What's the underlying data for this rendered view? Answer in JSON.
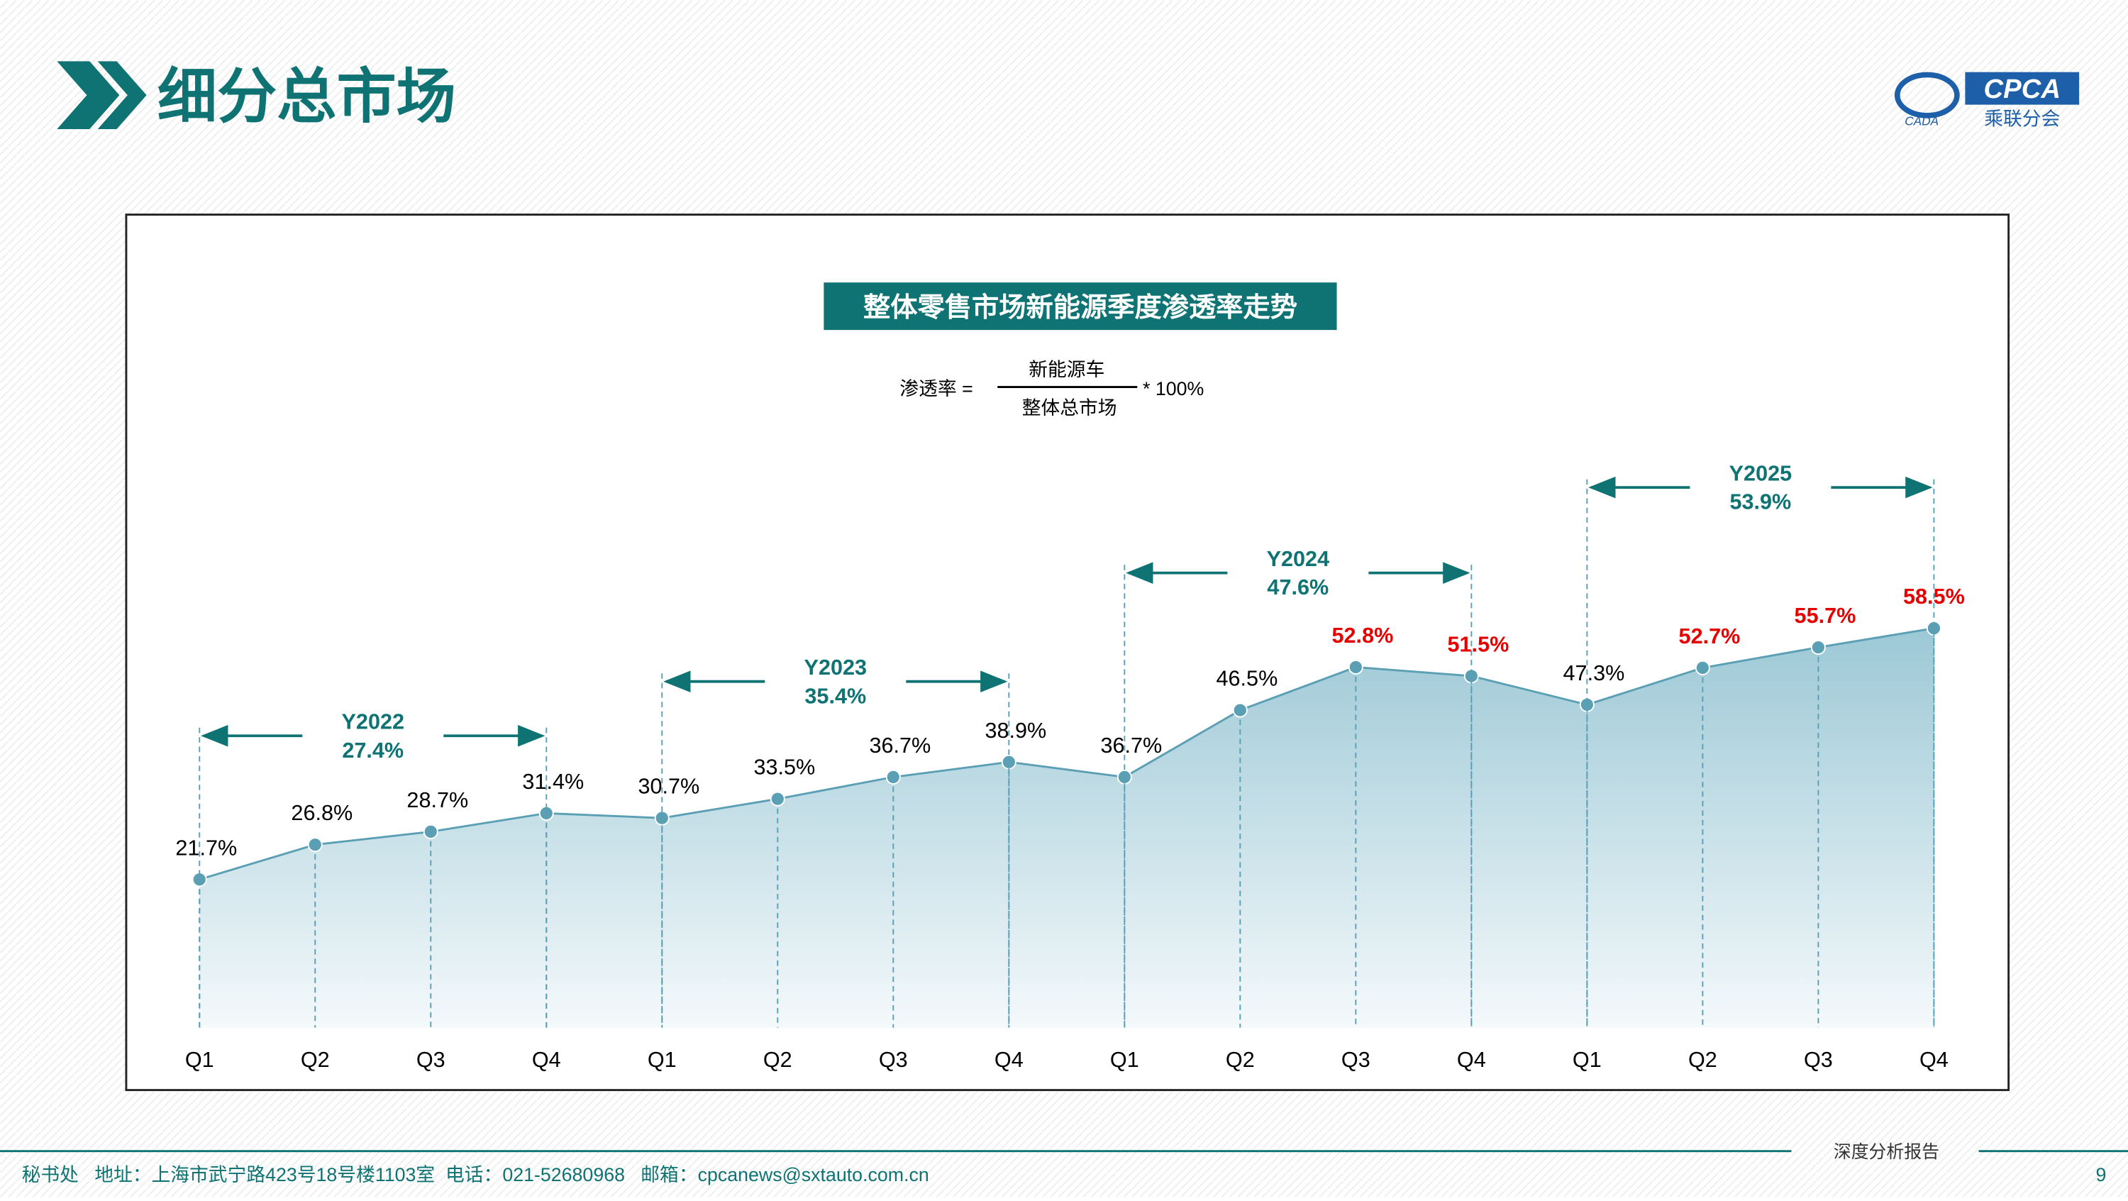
{
  "header": {
    "title": "细分总市场",
    "logo_text": "CPCA",
    "logo_sub": "乘联分会",
    "logo_small": "CADA"
  },
  "chart_data": {
    "type": "line",
    "title": "整体零售市场新能源季度渗透率走势",
    "formula": {
      "left": "渗透率 =",
      "numerator": "新能源车",
      "denominator": "整体总市场",
      "right": "* 100%"
    },
    "categories": [
      "Q1",
      "Q2",
      "Q3",
      "Q4",
      "Q1",
      "Q2",
      "Q3",
      "Q4",
      "Q1",
      "Q2",
      "Q3",
      "Q4",
      "Q1",
      "Q2",
      "Q3",
      "Q4"
    ],
    "values": [
      21.7,
      26.8,
      28.7,
      31.4,
      30.7,
      33.5,
      36.7,
      38.9,
      36.7,
      46.5,
      52.8,
      51.5,
      47.3,
      52.7,
      55.7,
      58.5
    ],
    "value_labels": [
      "21.7%",
      "26.8%",
      "28.7%",
      "31.4%",
      "30.7%",
      "33.5%",
      "36.7%",
      "38.9%",
      "36.7%",
      "46.5%",
      "52.8%",
      "51.5%",
      "47.3%",
      "52.7%",
      "55.7%",
      "58.5%"
    ],
    "value_label_colors": [
      "#000",
      "#000",
      "#000",
      "#000",
      "#000",
      "#000",
      "#000",
      "#000",
      "#000",
      "#000",
      "#e60000",
      "#e60000",
      "#000",
      "#e60000",
      "#e60000",
      "#e60000"
    ],
    "color": "#5b9fb5",
    "annotations": [
      {
        "label": "Y2022",
        "value": 27.4,
        "value_label": "27.4%"
      },
      {
        "label": "Y2023",
        "value": 35.4,
        "value_label": "35.4%"
      },
      {
        "label": "Y2024",
        "value": 47.6,
        "value_label": "47.6%"
      },
      {
        "label": "Y2025",
        "value": 53.9,
        "value_label": "53.9%"
      }
    ],
    "annotation_color": "#0f7373"
  },
  "footer": {
    "address": "秘书处   地址：上海市武宁路423号18号楼1103室  电话：021-52680968   邮箱：cpcanews@sxtauto.com.cn",
    "report": "深度分析报告",
    "page": "9"
  }
}
